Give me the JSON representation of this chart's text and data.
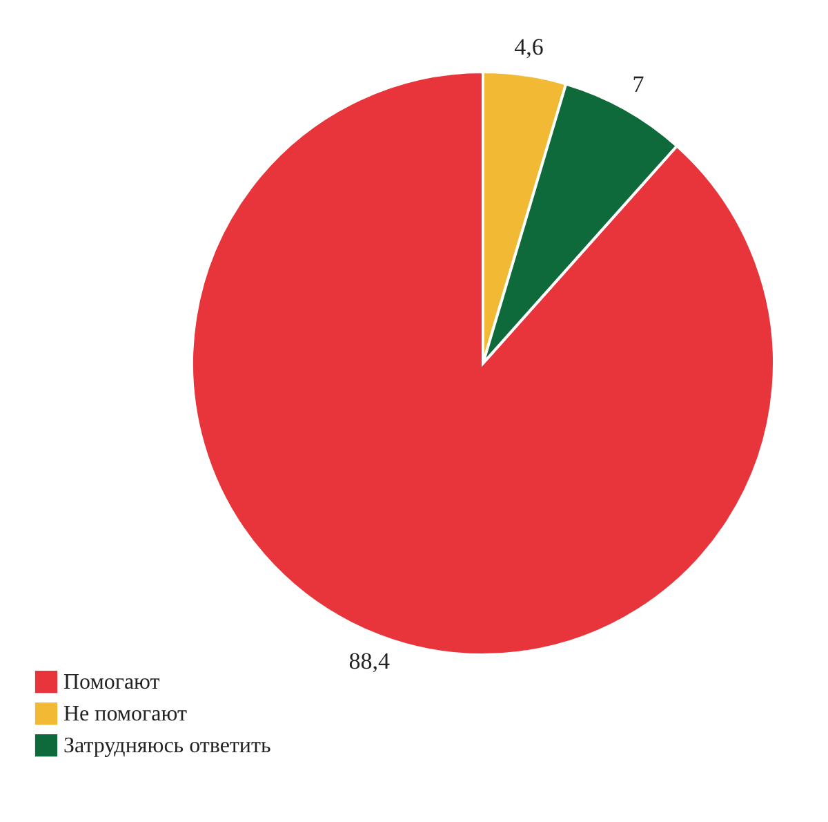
{
  "chart_data": {
    "type": "pie",
    "categories": [
      "Помогают",
      "Не помогают",
      "Затрудняюсь ответить"
    ],
    "values": [
      88.4,
      4.6,
      7
    ],
    "colors": [
      "#e8353b",
      "#f2b935",
      "#0f6a3b"
    ],
    "value_labels": [
      "88,4",
      "4,6",
      "7"
    ],
    "legend": "bottom left"
  }
}
